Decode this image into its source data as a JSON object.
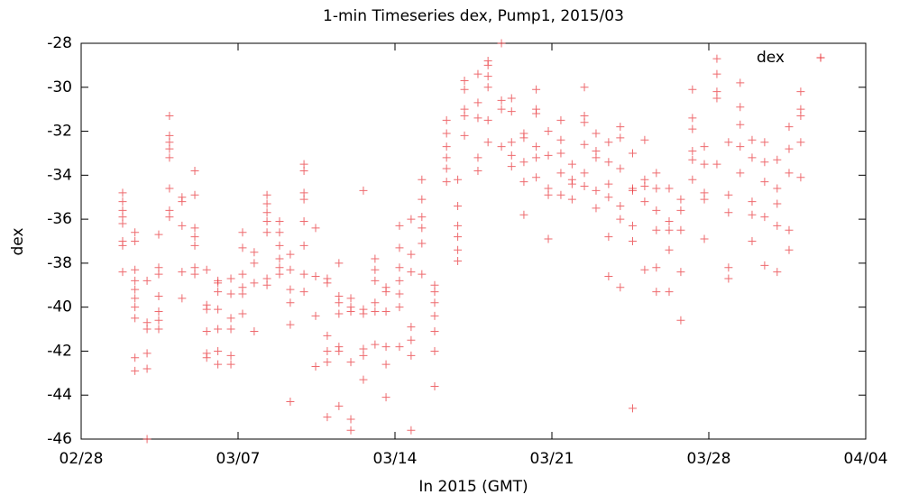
{
  "chart_data": {
    "type": "scatter",
    "title": "1-min Timeseries dex, Pump1, 2015/03",
    "xlabel": "In 2015 (GMT)",
    "ylabel": "dex",
    "xlim": [
      0,
      35
    ],
    "xticks": [
      {
        "value": 0,
        "label": "02/28"
      },
      {
        "value": 7,
        "label": "03/07"
      },
      {
        "value": 14,
        "label": "03/14"
      },
      {
        "value": 21,
        "label": "03/21"
      },
      {
        "value": 28,
        "label": "03/28"
      },
      {
        "value": 35,
        "label": "04/04"
      }
    ],
    "ylim": [
      -46,
      -28
    ],
    "yticks": [
      -46,
      -44,
      -42,
      -40,
      -38,
      -36,
      -34,
      -32,
      -30,
      -28
    ],
    "legend": "upper right",
    "series": [
      {
        "name": "dex",
        "color": "#e8383d",
        "x": [
          1.85,
          1.85,
          1.85,
          1.85,
          1.85,
          1.85,
          1.85,
          1.85,
          2.4,
          2.4,
          2.4,
          2.4,
          2.4,
          2.4,
          2.4,
          2.4,
          2.4,
          2.4,
          2.94,
          2.94,
          2.94,
          2.94,
          2.94,
          2.94,
          3.46,
          3.46,
          3.46,
          3.46,
          3.46,
          3.46,
          3.46,
          3.94,
          3.94,
          3.94,
          3.94,
          3.94,
          3.94,
          3.94,
          3.94,
          4.5,
          4.5,
          4.5,
          4.5,
          4.5,
          5.07,
          5.07,
          5.07,
          5.07,
          5.07,
          5.07,
          5.07,
          5.6,
          5.6,
          5.6,
          5.6,
          5.6,
          5.6,
          6.1,
          6.1,
          6.1,
          6.1,
          6.1,
          6.1,
          6.1,
          6.68,
          6.68,
          6.68,
          6.68,
          6.68,
          6.68,
          7.2,
          7.2,
          7.2,
          7.2,
          7.2,
          7.2,
          7.72,
          7.72,
          7.72,
          7.72,
          8.29,
          8.29,
          8.29,
          8.29,
          8.29,
          8.29,
          8.29,
          8.85,
          8.85,
          8.85,
          8.85,
          8.85,
          8.85,
          9.33,
          9.33,
          9.33,
          9.33,
          9.33,
          9.33,
          9.94,
          9.94,
          9.94,
          9.94,
          9.94,
          9.94,
          9.94,
          9.94,
          10.46,
          10.46,
          10.46,
          10.46,
          10.98,
          10.98,
          10.98,
          10.98,
          10.98,
          10.98,
          11.5,
          11.5,
          11.5,
          11.5,
          11.5,
          11.5,
          11.5,
          12.03,
          12.03,
          12.03,
          12.03,
          12.03,
          12.03,
          12.59,
          12.59,
          12.59,
          12.59,
          12.59,
          12.59,
          13.11,
          13.11,
          13.11,
          13.11,
          13.11,
          13.11,
          13.6,
          13.6,
          13.6,
          13.6,
          13.6,
          13.6,
          14.2,
          14.2,
          14.2,
          14.2,
          14.2,
          14.2,
          14.2,
          14.72,
          14.72,
          14.72,
          14.72,
          14.72,
          14.72,
          14.72,
          15.2,
          15.2,
          15.2,
          15.2,
          15.2,
          15.2,
          15.77,
          15.77,
          15.77,
          15.77,
          15.77,
          15.77,
          15.77,
          16.3,
          16.3,
          16.3,
          16.3,
          16.3,
          16.3,
          16.8,
          16.8,
          16.8,
          16.8,
          16.8,
          16.8,
          17.1,
          17.1,
          17.1,
          17.1,
          17.1,
          17.7,
          17.7,
          17.7,
          17.7,
          17.7,
          18.15,
          18.15,
          18.15,
          18.15,
          18.15,
          18.15,
          18.75,
          18.75,
          18.75,
          18.75,
          19.2,
          19.2,
          19.2,
          19.2,
          19.2,
          19.75,
          19.75,
          19.75,
          19.75,
          19.75,
          20.3,
          20.3,
          20.3,
          20.3,
          20.3,
          20.3,
          20.84,
          20.84,
          20.84,
          20.84,
          20.84,
          21.4,
          21.4,
          21.4,
          21.4,
          21.4,
          21.9,
          21.9,
          21.9,
          21.9,
          22.45,
          22.45,
          22.45,
          22.45,
          22.45,
          22.45,
          22.97,
          22.97,
          22.97,
          22.97,
          22.97,
          23.53,
          23.53,
          23.53,
          23.53,
          23.53,
          23.53,
          24.05,
          24.05,
          24.05,
          24.05,
          24.05,
          24.05,
          24.6,
          24.6,
          24.6,
          24.6,
          24.6,
          24.6,
          25.14,
          25.14,
          25.14,
          25.14,
          25.14,
          25.66,
          25.66,
          25.66,
          25.66,
          25.66,
          25.66,
          26.23,
          26.23,
          26.23,
          26.23,
          26.23,
          26.75,
          26.75,
          26.75,
          26.75,
          26.75,
          27.27,
          27.27,
          27.27,
          27.27,
          27.27,
          27.27,
          27.8,
          27.8,
          27.8,
          27.8,
          27.8,
          28.36,
          28.36,
          28.36,
          28.36,
          28.36,
          28.88,
          28.88,
          28.88,
          28.88,
          28.88,
          29.4,
          29.4,
          29.4,
          29.4,
          29.4,
          29.93,
          29.93,
          29.93,
          29.93,
          29.93,
          30.49,
          30.49,
          30.49,
          30.49,
          30.49,
          31.05,
          31.05,
          31.05,
          31.05,
          31.05,
          31.58,
          31.58,
          31.58,
          31.58,
          31.58,
          32.1,
          32.1,
          32.1,
          32.1,
          32.1
        ],
        "values": [
          -34.8,
          -35.2,
          -35.6,
          -36.2,
          -37,
          -37.2,
          -38.4,
          -35.9,
          -36.6,
          -37,
          -38.3,
          -38.8,
          -39.2,
          -39.6,
          -40,
          -40.5,
          -42.3,
          -42.9,
          -40.7,
          -41,
          -42.1,
          -42.8,
          -38.8,
          -46,
          -36.7,
          -38.2,
          -38.5,
          -39.5,
          -40.2,
          -40.6,
          -41,
          -31.3,
          -32.2,
          -32.5,
          -32.8,
          -33.2,
          -34.6,
          -35.6,
          -35.9,
          -35,
          -35.2,
          -36.3,
          -38.4,
          -39.6,
          -33.8,
          -34.9,
          -36.4,
          -36.8,
          -37.2,
          -38.2,
          -38.5,
          -38.3,
          -39.9,
          -40.1,
          -41.1,
          -42.1,
          -42.3,
          -38.8,
          -38.9,
          -39.3,
          -40.1,
          -41,
          -42,
          -42.6,
          -38.7,
          -39.4,
          -40.5,
          -41,
          -42.2,
          -42.6,
          -36.6,
          -37.3,
          -38.5,
          -39.1,
          -39.4,
          -40.3,
          -37.5,
          -38,
          -38.9,
          -41.1,
          -34.9,
          -35.3,
          -35.7,
          -36.1,
          -36.6,
          -38.7,
          -39,
          -36.1,
          -36.6,
          -37.2,
          -37.8,
          -38.2,
          -38.5,
          -37.6,
          -38.3,
          -39.2,
          -39.8,
          -40.8,
          -44.3,
          -33.5,
          -33.8,
          -34.8,
          -35.1,
          -36.1,
          -37.2,
          -38.5,
          -39.3,
          -36.4,
          -38.6,
          -40.4,
          -42.7,
          -38.7,
          -38.9,
          -41.3,
          -42,
          -42.5,
          -45,
          -38,
          -39.5,
          -39.8,
          -40.3,
          -41.8,
          -42,
          -44.5,
          -39.6,
          -40,
          -40.2,
          -42.5,
          -45.1,
          -45.6,
          -34.7,
          -40.1,
          -40.3,
          -41.9,
          -42.2,
          -43.3,
          -37.8,
          -38.3,
          -38.8,
          -39.8,
          -40.2,
          -41.7,
          -39.1,
          -39.3,
          -40.2,
          -41.8,
          -44.1,
          -42.6,
          -36.3,
          -37.3,
          -38.2,
          -38.8,
          -39.4,
          -40,
          -41.8,
          -36,
          -37.6,
          -38.4,
          -40.9,
          -41.5,
          -42.2,
          -45.6,
          -34.2,
          -35.1,
          -35.9,
          -36.4,
          -37.1,
          -38.5,
          -39,
          -39.3,
          -39.8,
          -40.4,
          -41.1,
          -42,
          -43.6,
          -31.5,
          -32.1,
          -32.7,
          -33.2,
          -33.7,
          -34.3,
          -34.2,
          -35.4,
          -36.3,
          -36.8,
          -37.4,
          -37.9,
          -29.7,
          -30.1,
          -31,
          -31.3,
          -32.2,
          -29.4,
          -30.7,
          -31.4,
          -33.2,
          -33.8,
          -28.8,
          -29,
          -29.5,
          -30,
          -31.5,
          -32.5,
          -28,
          -30.6,
          -31,
          -32.7,
          -30.5,
          -31.1,
          -32.5,
          -33.1,
          -33.6,
          -32.1,
          -32.3,
          -33.4,
          -34.3,
          -35.8,
          -30.1,
          -31,
          -31.2,
          -32.7,
          -33.2,
          -34.1,
          -32,
          -33.1,
          -34.6,
          -34.9,
          -36.9,
          -31.5,
          -32.4,
          -33,
          -33.9,
          -34.9,
          -33.5,
          -34.2,
          -34.4,
          -35.1,
          -30,
          -31.3,
          -31.6,
          -32.6,
          -33.9,
          -34.5,
          -32.1,
          -32.9,
          -33.2,
          -34.7,
          -35.5,
          -32.5,
          -33.4,
          -34.4,
          -35,
          -36.8,
          -38.6,
          -31.8,
          -32.3,
          -33.7,
          -35.4,
          -36,
          -39.1,
          -33,
          -34.6,
          -34.7,
          -36.3,
          -37,
          -44.6,
          -32.4,
          -34.2,
          -34.5,
          -35.2,
          -38.3,
          -33.9,
          -34.6,
          -35.6,
          -36.5,
          -38.2,
          -39.3,
          -34.6,
          -36.1,
          -36.5,
          -37.4,
          -39.3,
          -35.1,
          -35.6,
          -36.5,
          -38.4,
          -40.6,
          -30.1,
          -31.4,
          -31.9,
          -32.9,
          -33.3,
          -34.2,
          -32.7,
          -33.5,
          -34.8,
          -35.1,
          -36.9,
          -28.7,
          -29.4,
          -30.2,
          -30.5,
          -33.5,
          -32.5,
          -34.9,
          -35.7,
          -38.2,
          -38.7,
          -29.8,
          -30.9,
          -31.7,
          -32.7,
          -33.9,
          -32.4,
          -33.2,
          -35.2,
          -35.8,
          -37,
          -32.5,
          -33.4,
          -34.3,
          -35.9,
          -38.1,
          -33.3,
          -34.6,
          -35.3,
          -36.3,
          -38.4,
          -31.8,
          -32.8,
          -33.9,
          -36.5,
          -37.4,
          -30.2,
          -31,
          -31.3,
          -32.5,
          -34.1
        ]
      }
    ]
  }
}
